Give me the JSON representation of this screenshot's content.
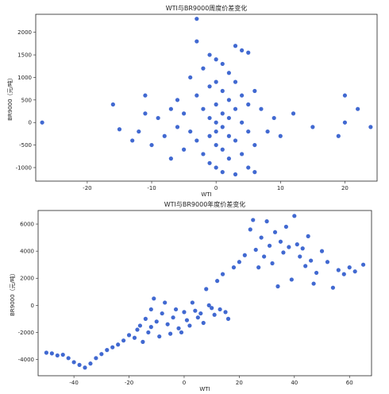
{
  "chart_data": [
    {
      "type": "scatter",
      "title": "WTI与BR9000周度价差变化",
      "xlabel": "WTI",
      "ylabel": "BR9000（元/吨）",
      "xlim": [
        -28,
        25
      ],
      "ylim": [
        -1300,
        2400
      ],
      "xticks": [
        -20,
        -10,
        0,
        10,
        20
      ],
      "yticks": [
        -1000,
        -500,
        0,
        500,
        1000,
        1500,
        2000
      ],
      "grid": false,
      "color": "#4169d1",
      "points": [
        [
          -27,
          0
        ],
        [
          -16,
          400
        ],
        [
          -15,
          -150
        ],
        [
          -13,
          -400
        ],
        [
          -12,
          -200
        ],
        [
          -11,
          600
        ],
        [
          -11,
          200
        ],
        [
          -10,
          -500
        ],
        [
          -9,
          100
        ],
        [
          -8,
          -300
        ],
        [
          -7,
          300
        ],
        [
          -7,
          -800
        ],
        [
          -6,
          500
        ],
        [
          -6,
          -100
        ],
        [
          -5,
          200
        ],
        [
          -5,
          -600
        ],
        [
          -4,
          1000
        ],
        [
          -4,
          -200
        ],
        [
          -3,
          2300
        ],
        [
          -3,
          1800
        ],
        [
          -3,
          600
        ],
        [
          -3,
          -400
        ],
        [
          -2,
          1200
        ],
        [
          -2,
          300
        ],
        [
          -2,
          -700
        ],
        [
          -1,
          1500
        ],
        [
          -1,
          800
        ],
        [
          -1,
          100
        ],
        [
          -1,
          -300
        ],
        [
          -1,
          -900
        ],
        [
          0,
          1400
        ],
        [
          0,
          900
        ],
        [
          0,
          400
        ],
        [
          0,
          0
        ],
        [
          0,
          -200
        ],
        [
          0,
          -500
        ],
        [
          0,
          -1000
        ],
        [
          1,
          1300
        ],
        [
          1,
          700
        ],
        [
          1,
          200
        ],
        [
          1,
          -100
        ],
        [
          1,
          -600
        ],
        [
          1,
          -1100
        ],
        [
          2,
          1100
        ],
        [
          2,
          500
        ],
        [
          2,
          100
        ],
        [
          2,
          -300
        ],
        [
          2,
          -800
        ],
        [
          3,
          1700
        ],
        [
          3,
          900
        ],
        [
          3,
          300
        ],
        [
          3,
          -400
        ],
        [
          3,
          -1150
        ],
        [
          4,
          1600
        ],
        [
          4,
          600
        ],
        [
          4,
          0
        ],
        [
          4,
          -700
        ],
        [
          5,
          1550
        ],
        [
          5,
          400
        ],
        [
          5,
          -200
        ],
        [
          5,
          -1000
        ],
        [
          6,
          700
        ],
        [
          6,
          -500
        ],
        [
          6,
          -1100
        ],
        [
          7,
          300
        ],
        [
          8,
          -200
        ],
        [
          9,
          100
        ],
        [
          10,
          -300
        ],
        [
          12,
          200
        ],
        [
          15,
          -100
        ],
        [
          19,
          -300
        ],
        [
          20,
          600
        ],
        [
          22,
          300
        ],
        [
          24,
          -100
        ],
        [
          20,
          0
        ]
      ]
    },
    {
      "type": "scatter",
      "title": "WTI与BR9000年度价差变化",
      "xlabel": "WTI",
      "ylabel": "BR9000（元/吨）",
      "xlim": [
        -53,
        68
      ],
      "ylim": [
        -5200,
        7000
      ],
      "xticks": [
        -40,
        -20,
        0,
        20,
        40,
        60
      ],
      "yticks": [
        -4000,
        -2000,
        0,
        2000,
        4000,
        6000
      ],
      "grid": false,
      "color": "#4169d1",
      "points": [
        [
          -50,
          -3500
        ],
        [
          -48,
          -3550
        ],
        [
          -46,
          -3700
        ],
        [
          -44,
          -3650
        ],
        [
          -42,
          -3900
        ],
        [
          -40,
          -4200
        ],
        [
          -38,
          -4400
        ],
        [
          -36,
          -4600
        ],
        [
          -34,
          -4300
        ],
        [
          -32,
          -3900
        ],
        [
          -30,
          -3600
        ],
        [
          -28,
          -3300
        ],
        [
          -26,
          -3100
        ],
        [
          -24,
          -2900
        ],
        [
          -22,
          -2600
        ],
        [
          -20,
          -2200
        ],
        [
          -18,
          -2400
        ],
        [
          -17,
          -1800
        ],
        [
          -16,
          -1500
        ],
        [
          -15,
          -2700
        ],
        [
          -14,
          -1000
        ],
        [
          -13,
          -2000
        ],
        [
          -12,
          -300
        ],
        [
          -12,
          -1600
        ],
        [
          -11,
          500
        ],
        [
          -10,
          -1200
        ],
        [
          -9,
          -2300
        ],
        [
          -8,
          -600
        ],
        [
          -7,
          200
        ],
        [
          -6,
          -1400
        ],
        [
          -5,
          -2100
        ],
        [
          -4,
          -900
        ],
        [
          -3,
          -300
        ],
        [
          -2,
          -1700
        ],
        [
          -1,
          -2000
        ],
        [
          0,
          -500
        ],
        [
          1,
          -1100
        ],
        [
          2,
          -1500
        ],
        [
          3,
          200
        ],
        [
          4,
          -400
        ],
        [
          5,
          -900
        ],
        [
          6,
          -600
        ],
        [
          7,
          -1300
        ],
        [
          8,
          1200
        ],
        [
          9,
          0
        ],
        [
          10,
          -200
        ],
        [
          11,
          -700
        ],
        [
          12,
          1800
        ],
        [
          13,
          -300
        ],
        [
          14,
          2300
        ],
        [
          15,
          -500
        ],
        [
          16,
          -1000
        ],
        [
          18,
          2800
        ],
        [
          20,
          3200
        ],
        [
          22,
          3700
        ],
        [
          24,
          5600
        ],
        [
          25,
          6300
        ],
        [
          26,
          4100
        ],
        [
          27,
          2800
        ],
        [
          28,
          5000
        ],
        [
          29,
          3600
        ],
        [
          30,
          6200
        ],
        [
          31,
          4400
        ],
        [
          32,
          3100
        ],
        [
          33,
          5400
        ],
        [
          34,
          1400
        ],
        [
          35,
          4700
        ],
        [
          36,
          3900
        ],
        [
          37,
          5800
        ],
        [
          38,
          4300
        ],
        [
          39,
          1900
        ],
        [
          40,
          6600
        ],
        [
          41,
          4500
        ],
        [
          42,
          3600
        ],
        [
          43,
          4200
        ],
        [
          44,
          2900
        ],
        [
          45,
          5100
        ],
        [
          46,
          3300
        ],
        [
          47,
          1600
        ],
        [
          48,
          2400
        ],
        [
          50,
          4000
        ],
        [
          52,
          3200
        ],
        [
          54,
          1300
        ],
        [
          56,
          2600
        ],
        [
          58,
          2300
        ],
        [
          60,
          2800
        ],
        [
          62,
          2500
        ],
        [
          65,
          3000
        ]
      ]
    }
  ]
}
